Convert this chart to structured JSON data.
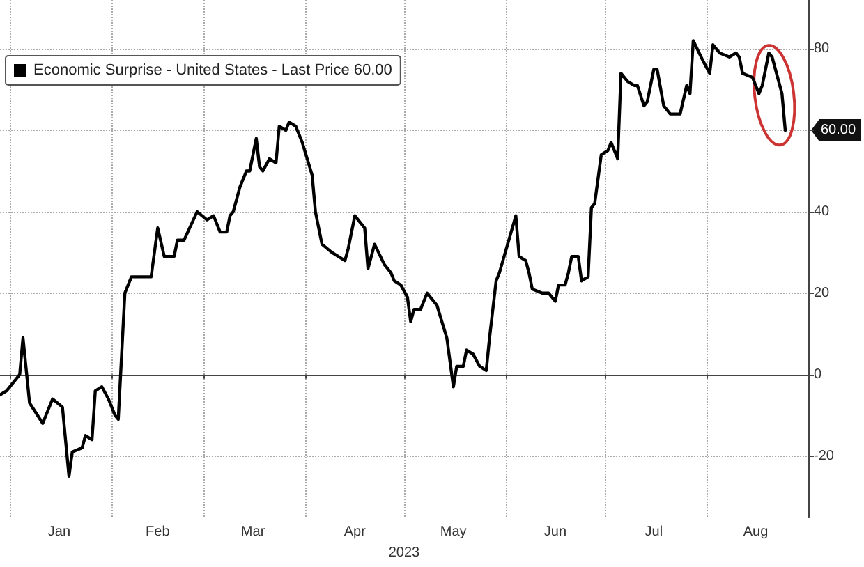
{
  "chart_data": {
    "type": "line",
    "xlabel": "2023",
    "x": [
      "2022-12-29",
      "2022-12-31",
      "2023-01-04",
      "2023-01-05",
      "2023-01-07",
      "2023-01-11",
      "2023-01-14",
      "2023-01-17",
      "2023-01-19",
      "2023-01-20",
      "2023-01-23",
      "2023-01-24",
      "2023-01-26",
      "2023-01-27",
      "2023-01-29",
      "2023-01-31",
      "2023-02-02",
      "2023-02-03",
      "2023-02-05",
      "2023-02-07",
      "2023-02-08",
      "2023-02-11",
      "2023-02-13",
      "2023-02-15",
      "2023-02-17",
      "2023-02-20",
      "2023-02-21",
      "2023-02-23",
      "2023-02-27",
      "2023-03-02",
      "2023-03-04",
      "2023-03-06",
      "2023-03-08",
      "2023-03-09",
      "2023-03-10",
      "2023-03-12",
      "2023-03-14",
      "2023-03-15",
      "2023-03-17",
      "2023-03-18",
      "2023-03-19",
      "2023-03-21",
      "2023-03-23",
      "2023-03-24",
      "2023-03-26",
      "2023-03-27",
      "2023-03-29",
      "2023-03-31",
      "2023-04-03",
      "2023-04-04",
      "2023-04-06",
      "2023-04-09",
      "2023-04-13",
      "2023-04-14",
      "2023-04-16",
      "2023-04-19",
      "2023-04-20",
      "2023-04-22",
      "2023-04-25",
      "2023-04-27",
      "2023-04-28",
      "2023-04-30",
      "2023-05-02",
      "2023-05-03",
      "2023-05-04",
      "2023-05-06",
      "2023-05-08",
      "2023-05-10",
      "2023-05-11",
      "2023-05-14",
      "2023-05-16",
      "2023-05-17",
      "2023-05-19",
      "2023-05-20",
      "2023-05-22",
      "2023-05-24",
      "2023-05-26",
      "2023-05-27",
      "2023-05-29",
      "2023-05-30",
      "2023-06-04",
      "2023-06-05",
      "2023-06-07",
      "2023-06-08",
      "2023-06-09",
      "2023-06-12",
      "2023-06-14",
      "2023-06-16",
      "2023-06-17",
      "2023-06-19",
      "2023-06-20",
      "2023-06-21",
      "2023-06-23",
      "2023-06-24",
      "2023-06-26",
      "2023-06-27",
      "2023-06-28",
      "2023-06-30",
      "2023-07-02",
      "2023-07-03",
      "2023-07-05",
      "2023-07-06",
      "2023-07-08",
      "2023-07-10",
      "2023-07-11",
      "2023-07-13",
      "2023-07-14",
      "2023-07-16",
      "2023-07-17",
      "2023-07-19",
      "2023-07-21",
      "2023-07-24",
      "2023-07-26",
      "2023-07-27",
      "2023-07-28",
      "2023-07-31",
      "2023-08-02",
      "2023-08-03",
      "2023-08-05",
      "2023-08-08",
      "2023-08-10",
      "2023-08-11",
      "2023-08-12",
      "2023-08-15",
      "2023-08-17",
      "2023-08-18",
      "2023-08-20",
      "2023-08-21",
      "2023-08-23",
      "2023-08-24",
      "2023-08-25"
    ],
    "series": [
      {
        "name": "Economic Surprise - United States - Last Price 60.00",
        "color": "#000000",
        "values": [
          -5,
          -4,
          0,
          9,
          -7,
          -12,
          -6,
          -8,
          -25,
          -19,
          -18,
          -15,
          -16,
          -4,
          -3,
          -6,
          -10,
          -11,
          20,
          24,
          24,
          24,
          24,
          36,
          29,
          29,
          33,
          33,
          40,
          38,
          39,
          35,
          35,
          39,
          40,
          46,
          50,
          50,
          58,
          51,
          50,
          53,
          52,
          61,
          60,
          62,
          61,
          57,
          49,
          40,
          32,
          30,
          28,
          31,
          39,
          36,
          26,
          32,
          27,
          25,
          23,
          22,
          19,
          13,
          16,
          16,
          20,
          18,
          17,
          9,
          -3,
          2,
          2,
          6,
          5,
          2,
          1,
          9,
          23,
          25,
          39,
          29,
          28,
          25,
          21,
          20,
          20,
          18,
          22,
          22,
          25,
          29,
          29,
          23,
          24,
          41,
          42,
          54,
          55,
          57,
          53,
          74,
          72,
          71,
          71,
          66,
          67,
          75,
          75,
          66,
          64,
          64,
          71,
          69,
          82,
          77,
          74,
          81,
          79,
          78,
          79,
          78,
          74,
          73,
          69,
          71,
          79,
          78,
          72,
          69,
          60
        ]
      }
    ],
    "xlim": [
      "2022-12-29",
      "2023-09-01"
    ],
    "xticks": [
      {
        "value": "2023-01-01",
        "label": null
      },
      {
        "value": "2023-01-16",
        "label": "Jan"
      },
      {
        "value": "2023-02-01",
        "label": null
      },
      {
        "value": "2023-02-15",
        "label": "Feb"
      },
      {
        "value": "2023-03-01",
        "label": null
      },
      {
        "value": "2023-03-16",
        "label": "Mar"
      },
      {
        "value": "2023-04-01",
        "label": null
      },
      {
        "value": "2023-04-16",
        "label": "Apr"
      },
      {
        "value": "2023-05-01",
        "label": null
      },
      {
        "value": "2023-05-16",
        "label": "May"
      },
      {
        "value": "2023-06-01",
        "label": null
      },
      {
        "value": "2023-06-16",
        "label": "Jun"
      },
      {
        "value": "2023-07-01",
        "label": null
      },
      {
        "value": "2023-07-16",
        "label": "Jul"
      },
      {
        "value": "2023-08-01",
        "label": null
      },
      {
        "value": "2023-08-16",
        "label": "Aug"
      }
    ],
    "ylim": [
      -35,
      92
    ],
    "yticks": [
      -20,
      0,
      20,
      40,
      {
        "value": 60,
        "label": null
      },
      80
    ],
    "annotations": [
      {
        "text": "60.00",
        "x": "2023-08-25",
        "y": 60
      }
    ],
    "grid": true,
    "legend": "top left",
    "marker": "none",
    "line_style": "solid"
  }
}
